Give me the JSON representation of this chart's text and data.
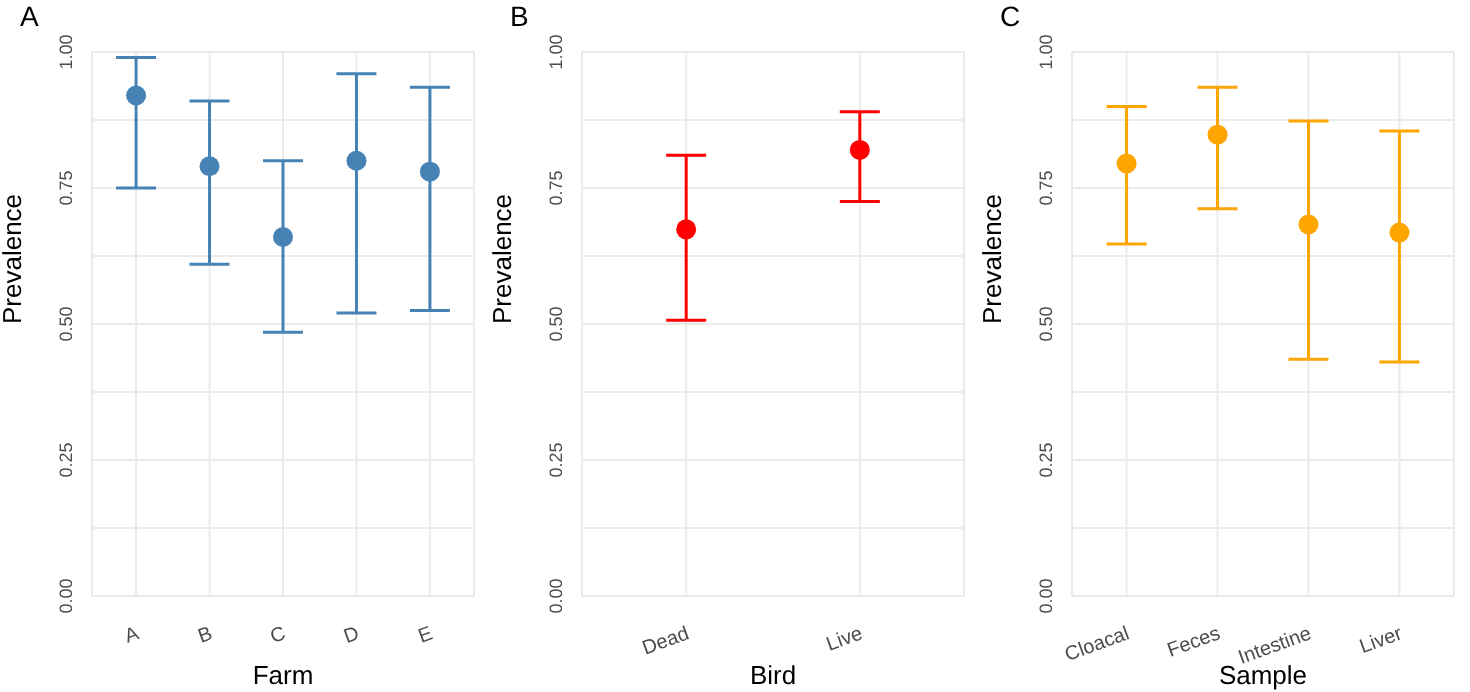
{
  "chart_data": [
    {
      "type": "scatter",
      "title": "A",
      "xlabel": "Farm",
      "ylabel": "Prevalence",
      "categories": [
        "A",
        "B",
        "C",
        "D",
        "E"
      ],
      "grid": true,
      "marker": "circle",
      "ylim": [
        0,
        1
      ],
      "yticks": [
        {
          "value": 0,
          "label": "0.00"
        },
        {
          "value": 0.125,
          "label": null
        },
        {
          "value": 0.25,
          "label": "0.25"
        },
        {
          "value": 0.375,
          "label": null
        },
        {
          "value": 0.5,
          "label": "0.50"
        },
        {
          "value": 0.625,
          "label": null
        },
        {
          "value": 0.75,
          "label": "0.75"
        },
        {
          "value": 0.875,
          "label": null
        },
        {
          "value": 1,
          "label": "1.00"
        }
      ],
      "series": [
        {
          "color": "#4682b4",
          "values": [
            0.92,
            0.79,
            0.66,
            0.8,
            0.78
          ],
          "errors": [
            [
              0.75,
              0.99
            ],
            [
              0.61,
              0.91
            ],
            [
              0.485,
              0.8
            ],
            [
              0.52,
              0.96
            ],
            [
              0.525,
              0.935
            ]
          ]
        }
      ]
    },
    {
      "type": "scatter",
      "title": "B",
      "xlabel": "Bird",
      "ylabel": "Prevalence",
      "categories": [
        "Dead",
        "Live"
      ],
      "grid": true,
      "marker": "circle",
      "ylim": [
        0,
        1
      ],
      "yticks": [
        {
          "value": 0,
          "label": "0.00"
        },
        {
          "value": 0.125,
          "label": null
        },
        {
          "value": 0.25,
          "label": "0.25"
        },
        {
          "value": 0.375,
          "label": null
        },
        {
          "value": 0.5,
          "label": "0.50"
        },
        {
          "value": 0.625,
          "label": null
        },
        {
          "value": 0.75,
          "label": "0.75"
        },
        {
          "value": 0.875,
          "label": null
        },
        {
          "value": 1,
          "label": "1.00"
        }
      ],
      "series": [
        {
          "color": "#ff0000",
          "values": [
            0.674,
            0.82
          ],
          "errors": [
            [
              0.507,
              0.81
            ],
            [
              0.725,
              0.89
            ]
          ]
        }
      ]
    },
    {
      "type": "scatter",
      "title": "C",
      "xlabel": "Sample",
      "ylabel": "Prevalence",
      "categories": [
        "Cloacal",
        "Feces",
        "Intestine",
        "Liver"
      ],
      "grid": true,
      "marker": "circle",
      "ylim": [
        0,
        1
      ],
      "yticks": [
        {
          "value": 0,
          "label": "0.00"
        },
        {
          "value": 0.125,
          "label": null
        },
        {
          "value": 0.25,
          "label": "0.25"
        },
        {
          "value": 0.375,
          "label": null
        },
        {
          "value": 0.5,
          "label": "0.50"
        },
        {
          "value": 0.625,
          "label": null
        },
        {
          "value": 0.75,
          "label": "0.75"
        },
        {
          "value": 0.875,
          "label": null
        },
        {
          "value": 1,
          "label": "1.00"
        }
      ],
      "series": [
        {
          "color": "#ffa500",
          "values": [
            0.795,
            0.848,
            0.683,
            0.668
          ],
          "errors": [
            [
              0.647,
              0.9
            ],
            [
              0.712,
              0.935
            ],
            [
              0.435,
              0.873
            ],
            [
              0.43,
              0.855
            ]
          ]
        }
      ]
    }
  ]
}
